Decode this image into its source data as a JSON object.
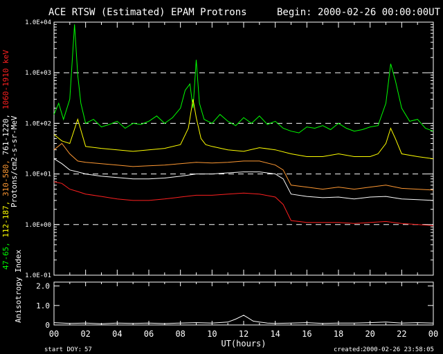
{
  "chart_data": [
    {
      "type": "line",
      "title": "ACE RTSW (Estimated) EPAM Protrons",
      "begin_label": "Begin: 2000-02-26 00:00:00UT",
      "ylabel_prefix": "Protons/cm2-s-sr-MeV",
      "ylabel_parts": [
        {
          "text": "47-65, ",
          "color": "#00ff00"
        },
        {
          "text": "112-187, ",
          "color": "#ffff00"
        },
        {
          "text": "310-580, ",
          "color": "#ff9933"
        },
        {
          "text": "761-1220, ",
          "color": "#ffffff"
        },
        {
          "text": "1060-1910 keV",
          "color": "#ff2020"
        }
      ],
      "yscale": "log",
      "ylim": [
        0.1,
        10000
      ],
      "yticks": [
        "1.0E-01",
        "1.0E+00",
        "1.0E+01",
        "1.0E+02",
        "1.0E+03",
        "1.0E+04"
      ],
      "ytick_values": [
        0.1,
        1,
        10,
        100,
        1000,
        10000
      ],
      "dashed_grid": [
        1,
        10,
        100,
        1000
      ],
      "xlim": [
        0,
        24
      ],
      "series": [
        {
          "color": "#00ff00",
          "x": [
            0,
            0.3,
            0.6,
            1.0,
            1.3,
            1.5,
            1.7,
            2.0,
            2.5,
            3.0,
            3.5,
            4.0,
            4.5,
            5.0,
            5.5,
            6.0,
            6.5,
            7.0,
            7.5,
            8.0,
            8.3,
            8.6,
            8.8,
            9.0,
            9.2,
            9.5,
            10.0,
            10.5,
            11.0,
            11.5,
            12.0,
            12.5,
            13.0,
            13.5,
            14.0,
            14.5,
            15.0,
            15.5,
            16.0,
            16.5,
            17.0,
            17.5,
            18.0,
            18.5,
            19.0,
            19.5,
            20.0,
            20.5,
            21.0,
            21.3,
            21.6,
            22.0,
            22.5,
            23.0,
            23.5,
            24.0
          ],
          "y": [
            150,
            250,
            120,
            300,
            9000,
            900,
            250,
            100,
            120,
            85,
            95,
            110,
            80,
            100,
            95,
            110,
            140,
            100,
            130,
            200,
            450,
            600,
            200,
            1800,
            250,
            120,
            100,
            150,
            110,
            90,
            130,
            100,
            140,
            95,
            110,
            80,
            70,
            65,
            85,
            80,
            90,
            75,
            100,
            80,
            70,
            75,
            85,
            90,
            250,
            1500,
            700,
            200,
            110,
            120,
            80,
            70
          ]
        },
        {
          "color": "#ffff00",
          "x": [
            0,
            0.5,
            1.0,
            1.5,
            2.0,
            3.0,
            4.0,
            5.0,
            6.0,
            7.0,
            8.0,
            8.5,
            8.8,
            9.0,
            9.3,
            9.6,
            10.0,
            11.0,
            12.0,
            13.0,
            14.0,
            15.0,
            16.0,
            17.0,
            18.0,
            19.0,
            20.0,
            20.5,
            21.0,
            21.3,
            21.6,
            22.0,
            23.0,
            24.0
          ],
          "y": [
            60,
            45,
            40,
            120,
            35,
            32,
            30,
            28,
            30,
            32,
            38,
            80,
            300,
            130,
            50,
            38,
            35,
            30,
            28,
            33,
            30,
            25,
            22,
            22,
            25,
            22,
            22,
            25,
            40,
            80,
            50,
            25,
            22,
            20
          ]
        },
        {
          "color": "#ff9933",
          "x": [
            0,
            0.5,
            1,
            1.5,
            2,
            3,
            4,
            5,
            6,
            7,
            8,
            9,
            10,
            11,
            12,
            13,
            14,
            14.5,
            15,
            16,
            17,
            18,
            19,
            20,
            21,
            22,
            23,
            24
          ],
          "y": [
            30,
            40,
            25,
            18,
            17,
            16,
            15,
            14,
            14.5,
            15,
            16,
            17,
            16.5,
            17,
            18,
            18,
            15,
            12,
            6,
            5.5,
            5,
            5.5,
            5,
            5.5,
            6,
            5.2,
            5,
            4.8
          ]
        },
        {
          "color": "#ffffff",
          "x": [
            0,
            0.5,
            1,
            1.5,
            2,
            3,
            4,
            5,
            6,
            7,
            8,
            9,
            10,
            11,
            12,
            13,
            14,
            14.5,
            15,
            16,
            17,
            18,
            19,
            20,
            21,
            22,
            23,
            24
          ],
          "y": [
            20,
            16,
            12,
            11,
            10,
            9,
            8.5,
            8,
            8,
            8.3,
            9,
            10,
            10,
            10.5,
            11,
            11,
            10,
            8,
            4,
            3.6,
            3.4,
            3.5,
            3.2,
            3.5,
            3.6,
            3.2,
            3.1,
            3
          ]
        },
        {
          "color": "#ff2020",
          "x": [
            0,
            0.5,
            1,
            1.5,
            2,
            3,
            4,
            5,
            6,
            7,
            8,
            9,
            10,
            11,
            12,
            13,
            14,
            14.5,
            15,
            16,
            17,
            18,
            19,
            20,
            21,
            22,
            23,
            24
          ],
          "y": [
            7,
            6.5,
            5,
            4.5,
            4,
            3.6,
            3.2,
            3,
            3,
            3.2,
            3.5,
            3.8,
            3.8,
            4,
            4.2,
            4,
            3.5,
            2.5,
            1.2,
            1.1,
            1.1,
            1.1,
            1.05,
            1.1,
            1.15,
            1.05,
            1,
            0.95
          ]
        }
      ]
    },
    {
      "type": "line",
      "ylabel": "Anisotropy Index",
      "ylim": [
        0,
        2.2
      ],
      "yticks": [
        "0",
        "1.0",
        "2.0"
      ],
      "ytick_values": [
        0,
        1,
        2
      ],
      "xlabel": "UT(hours)",
      "xticks": [
        "00",
        "02",
        "04",
        "06",
        "08",
        "10",
        "12",
        "14",
        "16",
        "18",
        "20",
        "22",
        "00"
      ],
      "xtick_values": [
        0,
        2,
        4,
        6,
        8,
        10,
        12,
        14,
        16,
        18,
        20,
        22,
        24
      ],
      "xlim": [
        0,
        24
      ],
      "series": [
        {
          "color": "#ffffff",
          "x": [
            0,
            1,
            2,
            3,
            4,
            5,
            6,
            7,
            8,
            9,
            10,
            11,
            11.5,
            12,
            12.3,
            12.6,
            13,
            13.5,
            14,
            15,
            16,
            17,
            18,
            19,
            20,
            21,
            22,
            23,
            24
          ],
          "y": [
            0.12,
            0.08,
            0.1,
            0.06,
            0.1,
            0.08,
            0.1,
            0.07,
            0.1,
            0.12,
            0.1,
            0.15,
            0.3,
            0.5,
            0.35,
            0.2,
            0.15,
            0.1,
            0.08,
            0.1,
            0.12,
            0.08,
            0.1,
            0.1,
            0.12,
            0.15,
            0.1,
            0.12,
            0.1
          ]
        }
      ]
    }
  ],
  "footer": {
    "start_doy_label": "start DOY:",
    "start_doy_value": "57",
    "created_label": "created:",
    "created_value": "2000-02-26 23:58:05"
  }
}
